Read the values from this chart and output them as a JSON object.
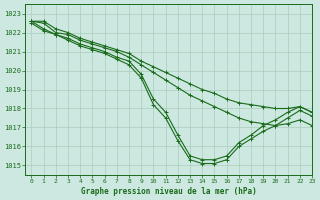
{
  "title": "Graphe pression niveau de la mer (hPa)",
  "background_color": "#cce8e0",
  "grid_color": "#aaccbb",
  "line_color": "#1a6b1a",
  "xlim": [
    -0.5,
    23
  ],
  "ylim": [
    1014.5,
    1023.5
  ],
  "yticks": [
    1015,
    1016,
    1017,
    1018,
    1019,
    1020,
    1021,
    1022,
    1023
  ],
  "xticks": [
    0,
    1,
    2,
    3,
    4,
    5,
    6,
    7,
    8,
    9,
    10,
    11,
    12,
    13,
    14,
    15,
    16,
    17,
    18,
    19,
    20,
    21,
    22,
    23
  ],
  "series": [
    {
      "x": [
        0,
        1,
        2,
        3,
        4,
        5,
        6,
        7,
        8,
        9,
        10,
        11,
        12,
        13,
        14,
        15,
        16,
        17,
        18,
        19,
        20,
        21,
        22,
        23
      ],
      "y": [
        1022.6,
        1022.6,
        1022.2,
        1022.0,
        1021.7,
        1021.5,
        1021.3,
        1021.1,
        1020.9,
        1020.5,
        1020.2,
        1019.9,
        1019.6,
        1019.3,
        1019.0,
        1018.8,
        1018.5,
        1018.3,
        1018.2,
        1018.1,
        1018.0,
        1018.0,
        1018.1,
        1017.8
      ]
    },
    {
      "x": [
        0,
        1,
        2,
        3,
        4,
        5,
        6,
        7,
        8,
        9,
        10,
        11,
        12,
        13,
        14,
        15,
        16,
        17,
        18,
        19,
        20,
        21,
        22,
        23
      ],
      "y": [
        1022.6,
        1022.5,
        1022.0,
        1021.9,
        1021.6,
        1021.4,
        1021.2,
        1021.0,
        1020.7,
        1020.3,
        1019.9,
        1019.5,
        1019.1,
        1018.7,
        1018.4,
        1018.1,
        1017.8,
        1017.5,
        1017.3,
        1017.2,
        1017.1,
        1017.2,
        1017.4,
        1017.1
      ]
    },
    {
      "x": [
        0,
        1,
        2,
        3,
        4,
        5,
        6,
        7,
        8,
        9,
        10,
        11,
        12,
        13,
        14,
        15,
        16,
        17,
        18,
        19,
        20,
        21,
        22,
        23
      ],
      "y": [
        1022.6,
        1022.2,
        1021.9,
        1021.7,
        1021.4,
        1021.2,
        1021.0,
        1020.7,
        1020.5,
        1019.8,
        1018.5,
        1017.8,
        1016.6,
        1015.5,
        1015.3,
        1015.3,
        1015.5,
        1016.2,
        1016.6,
        1017.1,
        1017.4,
        1017.8,
        1018.1,
        1017.8
      ]
    },
    {
      "x": [
        0,
        1,
        2,
        3,
        4,
        5,
        6,
        7,
        8,
        9,
        10,
        11,
        12,
        13,
        14,
        15,
        16,
        17,
        18,
        19,
        20,
        21,
        22,
        23
      ],
      "y": [
        1022.5,
        1022.1,
        1021.9,
        1021.6,
        1021.3,
        1021.1,
        1020.9,
        1020.6,
        1020.3,
        1019.6,
        1018.2,
        1017.5,
        1016.3,
        1015.3,
        1015.1,
        1015.1,
        1015.3,
        1016.0,
        1016.4,
        1016.8,
        1017.1,
        1017.5,
        1017.9,
        1017.6
      ]
    }
  ]
}
